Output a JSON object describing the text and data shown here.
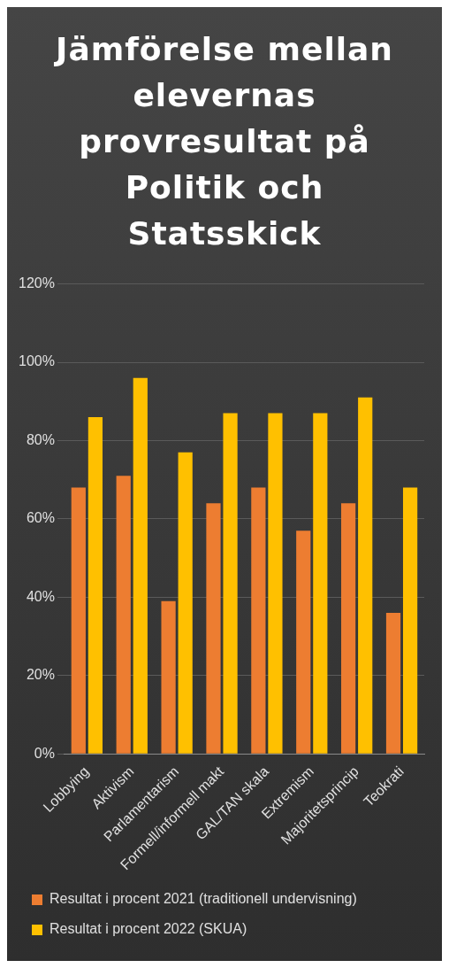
{
  "chart_data": {
    "type": "bar",
    "title": "Jämförelse mellan elevernas provresultat på Politik och Statsskick",
    "categories": [
      "Lobbying",
      "Aktivism",
      "Parlamentarism",
      "Formell/informell makt",
      "GAL/TAN skala",
      "Extremism",
      "Majoritetsprincip",
      "Teokrati"
    ],
    "series": [
      {
        "name": "Resultat i procent 2021 (traditionell undervisning)",
        "color": "#ed7d31",
        "values": [
          68,
          71,
          39,
          64,
          68,
          57,
          64,
          36
        ]
      },
      {
        "name": "Resultat i procent 2022 (SKUA)",
        "color": "#ffc000",
        "values": [
          86,
          96,
          77,
          87,
          87,
          87,
          91,
          68
        ]
      }
    ],
    "ylim": [
      0,
      120
    ],
    "yticks": [
      {
        "value": 0,
        "label": "0%"
      },
      {
        "value": 20,
        "label": "20%"
      },
      {
        "value": 40,
        "label": "40%"
      },
      {
        "value": 60,
        "label": "60%"
      },
      {
        "value": 80,
        "label": "80%"
      },
      {
        "value": 100,
        "label": "100%"
      },
      {
        "value": 120,
        "label": "120%"
      }
    ],
    "grid": "y",
    "legend": "bottom"
  }
}
